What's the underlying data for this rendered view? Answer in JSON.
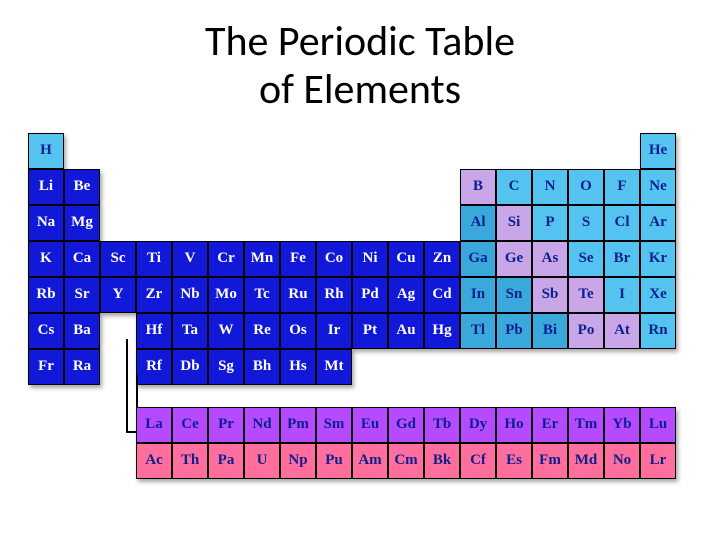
{
  "title_line1": "The Periodic Table",
  "title_line2": "of Elements",
  "layout": {
    "cell_size": 36,
    "cell_inner": 34,
    "symbol_fontsize": 15,
    "title_fontsize": 42
  },
  "colors": {
    "alkali": {
      "bg": "#1118d8",
      "fg": "#ffffff"
    },
    "noble_light": {
      "bg": "#54c3f0",
      "fg": "#0b1f8e"
    },
    "cyan_dark": {
      "bg": "#3aa8db",
      "fg": "#0b1f8e"
    },
    "metalloid": {
      "bg": "#c9a6e8",
      "fg": "#0b1f8e"
    },
    "lanth": {
      "bg": "#b64aff",
      "fg": "#0b1f8e"
    },
    "actin": {
      "bg": "#ff6e9c",
      "fg": "#0b1f8e"
    },
    "border": "#000000",
    "background": "#ffffff"
  },
  "main_table": [
    {
      "sym": "H",
      "row": 0,
      "col": 0,
      "cls": "noble_light"
    },
    {
      "sym": "He",
      "row": 0,
      "col": 17,
      "cls": "noble_light"
    },
    {
      "sym": "Li",
      "row": 1,
      "col": 0,
      "cls": "alkali"
    },
    {
      "sym": "Be",
      "row": 1,
      "col": 1,
      "cls": "alkali"
    },
    {
      "sym": "B",
      "row": 1,
      "col": 12,
      "cls": "metalloid"
    },
    {
      "sym": "C",
      "row": 1,
      "col": 13,
      "cls": "noble_light"
    },
    {
      "sym": "N",
      "row": 1,
      "col": 14,
      "cls": "noble_light"
    },
    {
      "sym": "O",
      "row": 1,
      "col": 15,
      "cls": "noble_light"
    },
    {
      "sym": "F",
      "row": 1,
      "col": 16,
      "cls": "noble_light"
    },
    {
      "sym": "Ne",
      "row": 1,
      "col": 17,
      "cls": "noble_light"
    },
    {
      "sym": "Na",
      "row": 2,
      "col": 0,
      "cls": "alkali"
    },
    {
      "sym": "Mg",
      "row": 2,
      "col": 1,
      "cls": "alkali"
    },
    {
      "sym": "Al",
      "row": 2,
      "col": 12,
      "cls": "cyan_dark"
    },
    {
      "sym": "Si",
      "row": 2,
      "col": 13,
      "cls": "metalloid"
    },
    {
      "sym": "P",
      "row": 2,
      "col": 14,
      "cls": "noble_light"
    },
    {
      "sym": "S",
      "row": 2,
      "col": 15,
      "cls": "noble_light"
    },
    {
      "sym": "Cl",
      "row": 2,
      "col": 16,
      "cls": "noble_light"
    },
    {
      "sym": "Ar",
      "row": 2,
      "col": 17,
      "cls": "noble_light"
    },
    {
      "sym": "K",
      "row": 3,
      "col": 0,
      "cls": "alkali"
    },
    {
      "sym": "Ca",
      "row": 3,
      "col": 1,
      "cls": "alkali"
    },
    {
      "sym": "Sc",
      "row": 3,
      "col": 2,
      "cls": "alkali"
    },
    {
      "sym": "Ti",
      "row": 3,
      "col": 3,
      "cls": "alkali"
    },
    {
      "sym": "V",
      "row": 3,
      "col": 4,
      "cls": "alkali"
    },
    {
      "sym": "Cr",
      "row": 3,
      "col": 5,
      "cls": "alkali"
    },
    {
      "sym": "Mn",
      "row": 3,
      "col": 6,
      "cls": "alkali"
    },
    {
      "sym": "Fe",
      "row": 3,
      "col": 7,
      "cls": "alkali"
    },
    {
      "sym": "Co",
      "row": 3,
      "col": 8,
      "cls": "alkali"
    },
    {
      "sym": "Ni",
      "row": 3,
      "col": 9,
      "cls": "alkali"
    },
    {
      "sym": "Cu",
      "row": 3,
      "col": 10,
      "cls": "alkali"
    },
    {
      "sym": "Zn",
      "row": 3,
      "col": 11,
      "cls": "alkali"
    },
    {
      "sym": "Ga",
      "row": 3,
      "col": 12,
      "cls": "cyan_dark"
    },
    {
      "sym": "Ge",
      "row": 3,
      "col": 13,
      "cls": "metalloid"
    },
    {
      "sym": "As",
      "row": 3,
      "col": 14,
      "cls": "metalloid"
    },
    {
      "sym": "Se",
      "row": 3,
      "col": 15,
      "cls": "noble_light"
    },
    {
      "sym": "Br",
      "row": 3,
      "col": 16,
      "cls": "noble_light"
    },
    {
      "sym": "Kr",
      "row": 3,
      "col": 17,
      "cls": "noble_light"
    },
    {
      "sym": "Rb",
      "row": 4,
      "col": 0,
      "cls": "alkali"
    },
    {
      "sym": "Sr",
      "row": 4,
      "col": 1,
      "cls": "alkali"
    },
    {
      "sym": "Y",
      "row": 4,
      "col": 2,
      "cls": "alkali"
    },
    {
      "sym": "Zr",
      "row": 4,
      "col": 3,
      "cls": "alkali"
    },
    {
      "sym": "Nb",
      "row": 4,
      "col": 4,
      "cls": "alkali"
    },
    {
      "sym": "Mo",
      "row": 4,
      "col": 5,
      "cls": "alkali"
    },
    {
      "sym": "Tc",
      "row": 4,
      "col": 6,
      "cls": "alkali"
    },
    {
      "sym": "Ru",
      "row": 4,
      "col": 7,
      "cls": "alkali"
    },
    {
      "sym": "Rh",
      "row": 4,
      "col": 8,
      "cls": "alkali"
    },
    {
      "sym": "Pd",
      "row": 4,
      "col": 9,
      "cls": "alkali"
    },
    {
      "sym": "Ag",
      "row": 4,
      "col": 10,
      "cls": "alkali"
    },
    {
      "sym": "Cd",
      "row": 4,
      "col": 11,
      "cls": "alkali"
    },
    {
      "sym": "In",
      "row": 4,
      "col": 12,
      "cls": "cyan_dark"
    },
    {
      "sym": "Sn",
      "row": 4,
      "col": 13,
      "cls": "cyan_dark"
    },
    {
      "sym": "Sb",
      "row": 4,
      "col": 14,
      "cls": "metalloid"
    },
    {
      "sym": "Te",
      "row": 4,
      "col": 15,
      "cls": "metalloid"
    },
    {
      "sym": "I",
      "row": 4,
      "col": 16,
      "cls": "noble_light"
    },
    {
      "sym": "Xe",
      "row": 4,
      "col": 17,
      "cls": "noble_light"
    },
    {
      "sym": "Cs",
      "row": 5,
      "col": 0,
      "cls": "alkali"
    },
    {
      "sym": "Ba",
      "row": 5,
      "col": 1,
      "cls": "alkali"
    },
    {
      "sym": "Hf",
      "row": 5,
      "col": 3,
      "cls": "alkali"
    },
    {
      "sym": "Ta",
      "row": 5,
      "col": 4,
      "cls": "alkali"
    },
    {
      "sym": "W",
      "row": 5,
      "col": 5,
      "cls": "alkali"
    },
    {
      "sym": "Re",
      "row": 5,
      "col": 6,
      "cls": "alkali"
    },
    {
      "sym": "Os",
      "row": 5,
      "col": 7,
      "cls": "alkali"
    },
    {
      "sym": "Ir",
      "row": 5,
      "col": 8,
      "cls": "alkali"
    },
    {
      "sym": "Pt",
      "row": 5,
      "col": 9,
      "cls": "alkali"
    },
    {
      "sym": "Au",
      "row": 5,
      "col": 10,
      "cls": "alkali"
    },
    {
      "sym": "Hg",
      "row": 5,
      "col": 11,
      "cls": "alkali"
    },
    {
      "sym": "Tl",
      "row": 5,
      "col": 12,
      "cls": "cyan_dark"
    },
    {
      "sym": "Pb",
      "row": 5,
      "col": 13,
      "cls": "cyan_dark"
    },
    {
      "sym": "Bi",
      "row": 5,
      "col": 14,
      "cls": "cyan_dark"
    },
    {
      "sym": "Po",
      "row": 5,
      "col": 15,
      "cls": "metalloid"
    },
    {
      "sym": "At",
      "row": 5,
      "col": 16,
      "cls": "metalloid"
    },
    {
      "sym": "Rn",
      "row": 5,
      "col": 17,
      "cls": "noble_light"
    },
    {
      "sym": "Fr",
      "row": 6,
      "col": 0,
      "cls": "alkali"
    },
    {
      "sym": "Ra",
      "row": 6,
      "col": 1,
      "cls": "alkali"
    },
    {
      "sym": "Rf",
      "row": 6,
      "col": 3,
      "cls": "alkali"
    },
    {
      "sym": "Db",
      "row": 6,
      "col": 4,
      "cls": "alkali"
    },
    {
      "sym": "Sg",
      "row": 6,
      "col": 5,
      "cls": "alkali"
    },
    {
      "sym": "Bh",
      "row": 6,
      "col": 6,
      "cls": "alkali"
    },
    {
      "sym": "Hs",
      "row": 6,
      "col": 7,
      "cls": "alkali"
    },
    {
      "sym": "Mt",
      "row": 6,
      "col": 8,
      "cls": "alkali"
    }
  ],
  "f_block": [
    {
      "sym": "La",
      "row": 0,
      "col": 0,
      "cls": "lanth"
    },
    {
      "sym": "Ce",
      "row": 0,
      "col": 1,
      "cls": "lanth"
    },
    {
      "sym": "Pr",
      "row": 0,
      "col": 2,
      "cls": "lanth"
    },
    {
      "sym": "Nd",
      "row": 0,
      "col": 3,
      "cls": "lanth"
    },
    {
      "sym": "Pm",
      "row": 0,
      "col": 4,
      "cls": "lanth"
    },
    {
      "sym": "Sm",
      "row": 0,
      "col": 5,
      "cls": "lanth"
    },
    {
      "sym": "Eu",
      "row": 0,
      "col": 6,
      "cls": "lanth"
    },
    {
      "sym": "Gd",
      "row": 0,
      "col": 7,
      "cls": "lanth"
    },
    {
      "sym": "Tb",
      "row": 0,
      "col": 8,
      "cls": "lanth"
    },
    {
      "sym": "Dy",
      "row": 0,
      "col": 9,
      "cls": "lanth"
    },
    {
      "sym": "Ho",
      "row": 0,
      "col": 10,
      "cls": "lanth"
    },
    {
      "sym": "Er",
      "row": 0,
      "col": 11,
      "cls": "lanth"
    },
    {
      "sym": "Tm",
      "row": 0,
      "col": 12,
      "cls": "lanth"
    },
    {
      "sym": "Yb",
      "row": 0,
      "col": 13,
      "cls": "lanth"
    },
    {
      "sym": "Lu",
      "row": 0,
      "col": 14,
      "cls": "lanth"
    },
    {
      "sym": "Ac",
      "row": 1,
      "col": 0,
      "cls": "actin"
    },
    {
      "sym": "Th",
      "row": 1,
      "col": 1,
      "cls": "actin"
    },
    {
      "sym": "Pa",
      "row": 1,
      "col": 2,
      "cls": "actin"
    },
    {
      "sym": "U",
      "row": 1,
      "col": 3,
      "cls": "actin"
    },
    {
      "sym": "Np",
      "row": 1,
      "col": 4,
      "cls": "actin"
    },
    {
      "sym": "Pu",
      "row": 1,
      "col": 5,
      "cls": "actin"
    },
    {
      "sym": "Am",
      "row": 1,
      "col": 6,
      "cls": "actin"
    },
    {
      "sym": "Cm",
      "row": 1,
      "col": 7,
      "cls": "actin"
    },
    {
      "sym": "Bk",
      "row": 1,
      "col": 8,
      "cls": "actin"
    },
    {
      "sym": "Cf",
      "row": 1,
      "col": 9,
      "cls": "actin"
    },
    {
      "sym": "Es",
      "row": 1,
      "col": 10,
      "cls": "actin"
    },
    {
      "sym": "Fm",
      "row": 1,
      "col": 11,
      "cls": "actin"
    },
    {
      "sym": "Md",
      "row": 1,
      "col": 12,
      "cls": "actin"
    },
    {
      "sym": "No",
      "row": 1,
      "col": 13,
      "cls": "actin"
    },
    {
      "sym": "Lr",
      "row": 1,
      "col": 14,
      "cls": "actin"
    }
  ]
}
